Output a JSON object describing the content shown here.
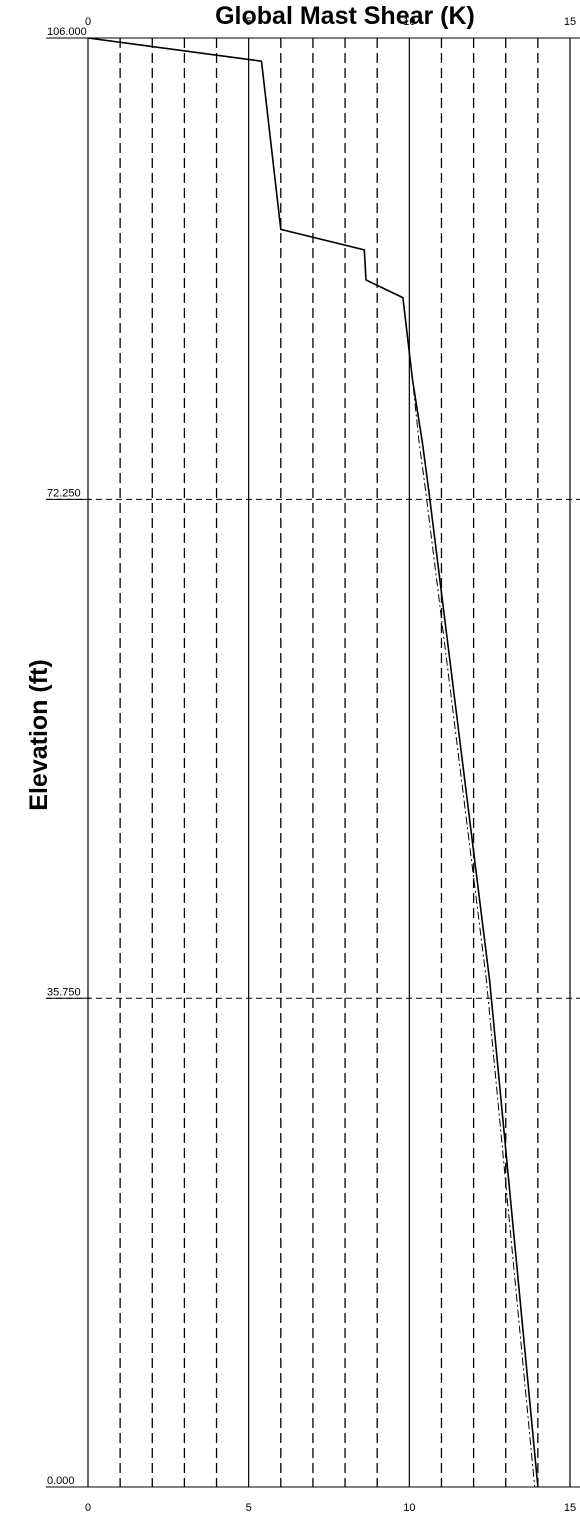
{
  "chart_data": {
    "type": "line",
    "title": "Global Mast Shear (K)",
    "ylabel": "Elevation (ft)",
    "xlabel": "",
    "xlim": [
      0,
      15
    ],
    "ylim": [
      0,
      106
    ],
    "x_ticks_top": [
      "0",
      "5",
      "10",
      "15"
    ],
    "x_ticks_bottom": [
      "0",
      "5",
      "10",
      "15"
    ],
    "x_tick_values": [
      0,
      5,
      10,
      15
    ],
    "y_ticks": [
      "106.000",
      "72.250",
      "35.750",
      "0.000"
    ],
    "y_tick_values": [
      106,
      72.25,
      35.75,
      0
    ],
    "grid": true,
    "series": [
      {
        "style": "solid",
        "points": [
          [
            0,
            106
          ],
          [
            5.4,
            104.3
          ],
          [
            6.0,
            92.0
          ],
          [
            8.6,
            90.5
          ],
          [
            8.65,
            88.3
          ],
          [
            9.8,
            87.0
          ],
          [
            10.1,
            81.0
          ],
          [
            10.4,
            76.5
          ],
          [
            10.6,
            73.0
          ],
          [
            12.5,
            37.0
          ],
          [
            14.0,
            0
          ]
        ]
      },
      {
        "style": "dash-dot",
        "points": [
          [
            0,
            106
          ],
          [
            5.4,
            104.3
          ],
          [
            6.0,
            92.0
          ],
          [
            8.6,
            90.5
          ],
          [
            8.65,
            88.3
          ],
          [
            9.8,
            87.0
          ],
          [
            10.1,
            81.0
          ],
          [
            10.3,
            76.5
          ],
          [
            10.5,
            73.0
          ],
          [
            12.4,
            37.0
          ],
          [
            13.9,
            0
          ]
        ]
      }
    ]
  }
}
